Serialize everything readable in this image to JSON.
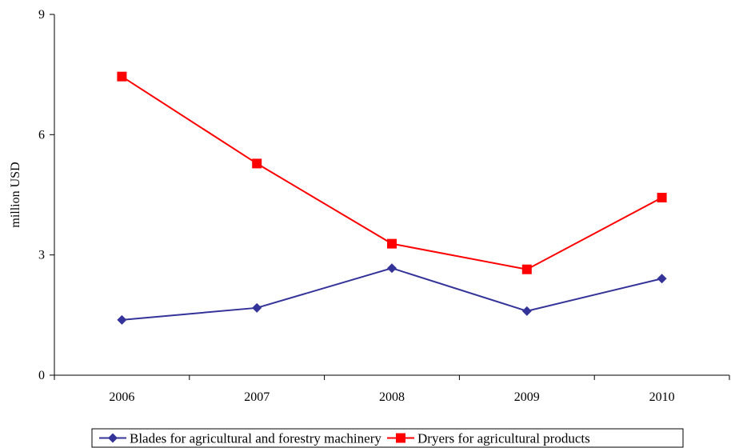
{
  "chart_data": {
    "type": "line",
    "title": "",
    "xlabel": "",
    "ylabel": "million USD",
    "categories": [
      "2006",
      "2007",
      "2008",
      "2009",
      "2010"
    ],
    "ylim": [
      0,
      9
    ],
    "yticks": [
      0,
      3,
      6,
      9
    ],
    "grid": false,
    "legend_position": "bottom",
    "series": [
      {
        "name": "Blades for agricultural and forestry machinery",
        "values": [
          1.38,
          1.68,
          2.67,
          1.6,
          2.41
        ],
        "color": "#333399",
        "marker": "diamond"
      },
      {
        "name": "Dryers for agricultural products",
        "values": [
          7.45,
          5.28,
          3.28,
          2.64,
          4.43
        ],
        "color": "#ff0000",
        "marker": "square"
      }
    ]
  }
}
